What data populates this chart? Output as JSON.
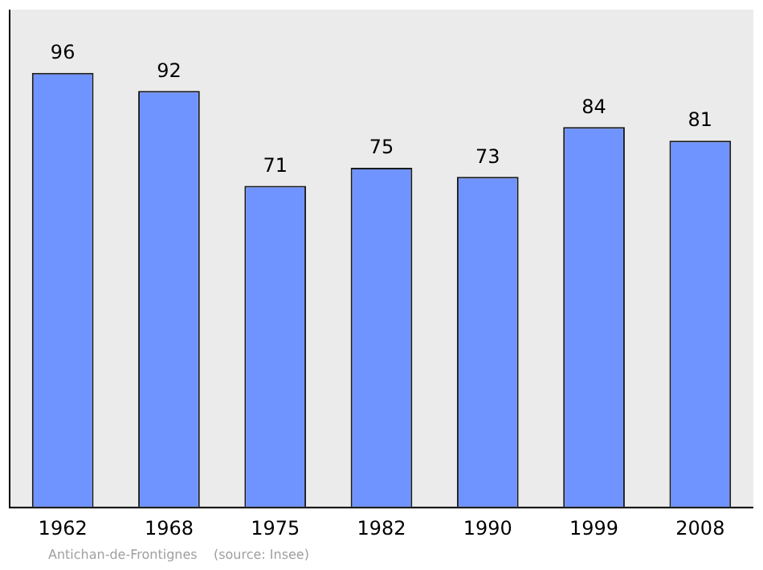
{
  "chart_data": {
    "type": "bar",
    "categories": [
      "1962",
      "1968",
      "1975",
      "1982",
      "1990",
      "1999",
      "2008"
    ],
    "values": [
      96,
      92,
      71,
      75,
      73,
      84,
      81
    ],
    "color": "#7094ff",
    "ylim": [
      0,
      110
    ],
    "tick_labels": "x",
    "data_labels": true,
    "grid": false,
    "legend": false,
    "annotations": [
      "Antichan-de-Frontignes    (source: Insee)"
    ]
  }
}
